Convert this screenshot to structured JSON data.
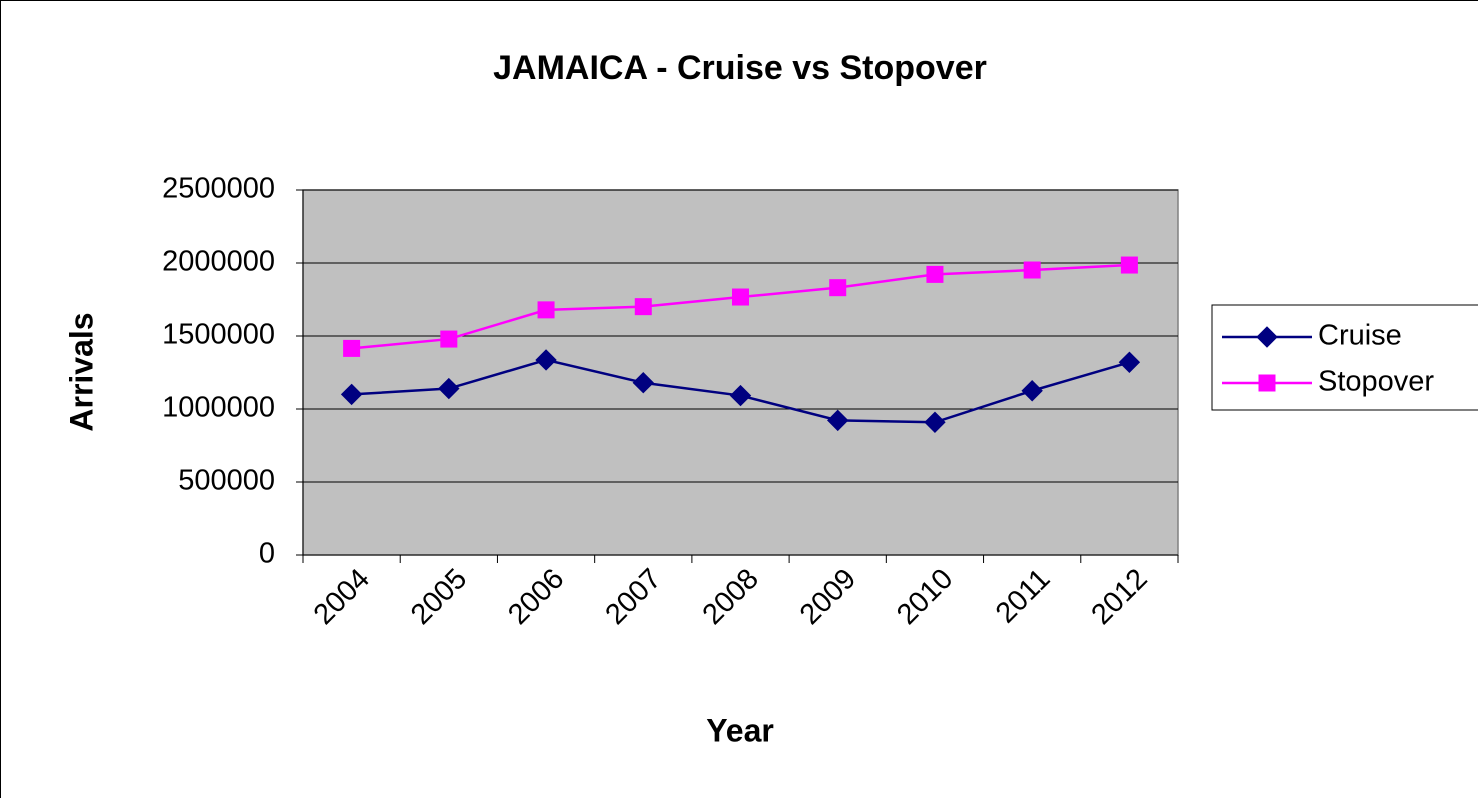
{
  "chart_data": {
    "type": "line",
    "title": "JAMAICA - Cruise vs Stopover",
    "x_label": "Year",
    "y_label": "Arrivals",
    "categories": [
      "2004",
      "2005",
      "2006",
      "2007",
      "2008",
      "2009",
      "2010",
      "2011",
      "2012"
    ],
    "series": [
      {
        "name": "Cruise",
        "color": "#000080",
        "marker": "diamond",
        "values": [
          1100000,
          1140000,
          1336000,
          1180000,
          1092000,
          922000,
          909000,
          1125000,
          1320000
        ]
      },
      {
        "name": "Stopover",
        "color": "#ff00ff",
        "marker": "square",
        "values": [
          1415000,
          1479000,
          1679000,
          1701000,
          1767000,
          1831000,
          1922000,
          1952000,
          1986000
        ]
      }
    ],
    "ylim": [
      0,
      2500000
    ],
    "yticks": [
      0,
      500000,
      1000000,
      1500000,
      2000000,
      2500000
    ],
    "grid": true,
    "plot_background": "#c0c0c0",
    "legend": "right"
  }
}
